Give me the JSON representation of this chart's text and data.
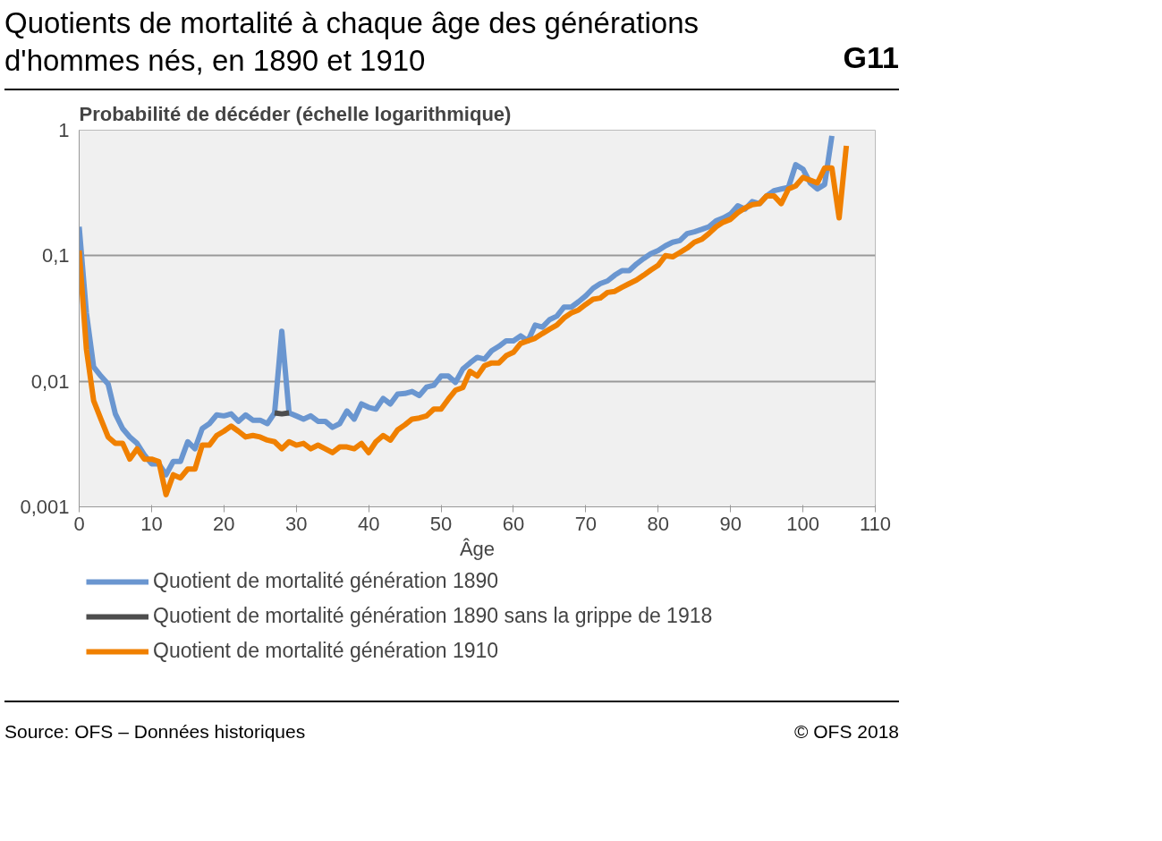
{
  "chart_data": {
    "type": "line",
    "title": "Quotients de mortalité à chaque âge des générations d'hommes nés, en 1890 et 1910",
    "ylabel": "Probabilité de décéder (échelle logarithmique)",
    "xlabel": "Âge",
    "annotations": [
      "G11",
      "Source: OFS – Données historiques",
      "© OFS 2018"
    ],
    "log": "y",
    "grid": "y",
    "legend": "bottom",
    "line_style": "solid",
    "marker": "none",
    "xlim": [
      0,
      110
    ],
    "xticks": [
      0,
      10,
      20,
      30,
      40,
      50,
      60,
      70,
      80,
      90,
      100,
      110
    ],
    "ylim": [
      0.001,
      1
    ],
    "yticks": [
      {
        "value": 0.001,
        "label": "0,001"
      },
      {
        "value": 0.01,
        "label": "0,01"
      },
      {
        "value": 0.1,
        "label": "0,1"
      },
      1
    ],
    "series": [
      {
        "name": "Quotient de mortalité génération 1890",
        "color": "#6a96d0",
        "x": [
          0,
          1,
          2,
          3,
          4,
          5,
          6,
          7,
          8,
          9,
          10,
          11,
          12,
          13,
          14,
          15,
          16,
          17,
          18,
          19,
          20,
          21,
          22,
          23,
          24,
          25,
          26,
          27,
          28,
          29,
          30,
          31,
          32,
          33,
          34,
          35,
          36,
          37,
          38,
          39,
          40,
          41,
          42,
          43,
          44,
          45,
          46,
          47,
          48,
          49,
          50,
          51,
          52,
          53,
          54,
          55,
          56,
          57,
          58,
          59,
          60,
          61,
          62,
          63,
          64,
          65,
          66,
          67,
          68,
          69,
          70,
          71,
          72,
          73,
          74,
          75,
          76,
          77,
          78,
          79,
          80,
          81,
          82,
          83,
          84,
          85,
          86,
          87,
          88,
          89,
          90,
          91,
          92,
          93,
          94,
          95,
          96,
          97,
          98,
          99,
          100,
          101,
          102,
          103,
          104
        ],
        "values": [
          0.17,
          0.035,
          0.013,
          0.011,
          0.0095,
          0.0055,
          0.0042,
          0.0036,
          0.0032,
          0.0026,
          0.0022,
          0.0022,
          0.0018,
          0.0023,
          0.0023,
          0.0033,
          0.0029,
          0.0042,
          0.0046,
          0.0054,
          0.0053,
          0.0055,
          0.0048,
          0.0054,
          0.0049,
          0.0049,
          0.0046,
          0.0056,
          0.025,
          0.0056,
          0.0053,
          0.005,
          0.0053,
          0.0048,
          0.0048,
          0.0043,
          0.0046,
          0.0058,
          0.005,
          0.0066,
          0.0062,
          0.006,
          0.0073,
          0.0066,
          0.0079,
          0.008,
          0.0083,
          0.0077,
          0.009,
          0.0093,
          0.011,
          0.011,
          0.0098,
          0.0125,
          0.014,
          0.0155,
          0.015,
          0.0175,
          0.019,
          0.021,
          0.021,
          0.023,
          0.021,
          0.028,
          0.027,
          0.031,
          0.033,
          0.039,
          0.039,
          0.043,
          0.048,
          0.055,
          0.06,
          0.063,
          0.07,
          0.076,
          0.076,
          0.086,
          0.095,
          0.104,
          0.11,
          0.12,
          0.128,
          0.132,
          0.15,
          0.155,
          0.162,
          0.17,
          0.19,
          0.2,
          0.215,
          0.25,
          0.235,
          0.27,
          0.26,
          0.3,
          0.33,
          0.34,
          0.35,
          0.53,
          0.49,
          0.38,
          0.34,
          0.37,
          0.9
        ]
      },
      {
        "name": "Quotient de mortalité génération 1890 sans la grippe de 1918",
        "color": "#4d4d4d",
        "x": [
          27,
          28,
          29
        ],
        "values": [
          0.0056,
          0.0055,
          0.0056
        ]
      },
      {
        "name": "Quotient de mortalité génération 1910",
        "color": "#f08000",
        "x": [
          0,
          1,
          2,
          3,
          4,
          5,
          6,
          7,
          8,
          9,
          10,
          11,
          12,
          13,
          14,
          15,
          16,
          17,
          18,
          19,
          20,
          21,
          22,
          23,
          24,
          25,
          26,
          27,
          28,
          29,
          30,
          31,
          32,
          33,
          34,
          35,
          36,
          37,
          38,
          39,
          40,
          41,
          42,
          43,
          44,
          45,
          46,
          47,
          48,
          49,
          50,
          51,
          52,
          53,
          54,
          55,
          56,
          57,
          58,
          59,
          60,
          61,
          62,
          63,
          64,
          65,
          66,
          67,
          68,
          69,
          70,
          71,
          72,
          73,
          74,
          75,
          76,
          77,
          78,
          79,
          80,
          81,
          82,
          83,
          84,
          85,
          86,
          87,
          88,
          89,
          90,
          91,
          92,
          93,
          94,
          95,
          96,
          97,
          98,
          99,
          100,
          101,
          102,
          103,
          104,
          105,
          106
        ],
        "values": [
          0.11,
          0.018,
          0.007,
          0.005,
          0.0036,
          0.0032,
          0.0032,
          0.0024,
          0.0029,
          0.0024,
          0.0024,
          0.0023,
          0.00125,
          0.0018,
          0.0017,
          0.002,
          0.002,
          0.0031,
          0.0031,
          0.0037,
          0.004,
          0.0044,
          0.004,
          0.0036,
          0.0037,
          0.0036,
          0.0034,
          0.0033,
          0.0029,
          0.0033,
          0.0031,
          0.0032,
          0.0029,
          0.0031,
          0.0029,
          0.0027,
          0.003,
          0.003,
          0.0029,
          0.0032,
          0.0027,
          0.0033,
          0.0037,
          0.0034,
          0.0041,
          0.0045,
          0.005,
          0.0051,
          0.0053,
          0.006,
          0.006,
          0.0072,
          0.0085,
          0.0089,
          0.012,
          0.011,
          0.0133,
          0.014,
          0.014,
          0.016,
          0.017,
          0.02,
          0.021,
          0.022,
          0.024,
          0.026,
          0.028,
          0.032,
          0.035,
          0.037,
          0.041,
          0.045,
          0.046,
          0.051,
          0.052,
          0.056,
          0.06,
          0.064,
          0.07,
          0.077,
          0.084,
          0.1,
          0.098,
          0.106,
          0.115,
          0.128,
          0.135,
          0.15,
          0.17,
          0.185,
          0.195,
          0.22,
          0.24,
          0.255,
          0.26,
          0.3,
          0.3,
          0.26,
          0.34,
          0.36,
          0.42,
          0.4,
          0.38,
          0.5,
          0.5,
          0.2,
          0.75
        ]
      }
    ]
  }
}
